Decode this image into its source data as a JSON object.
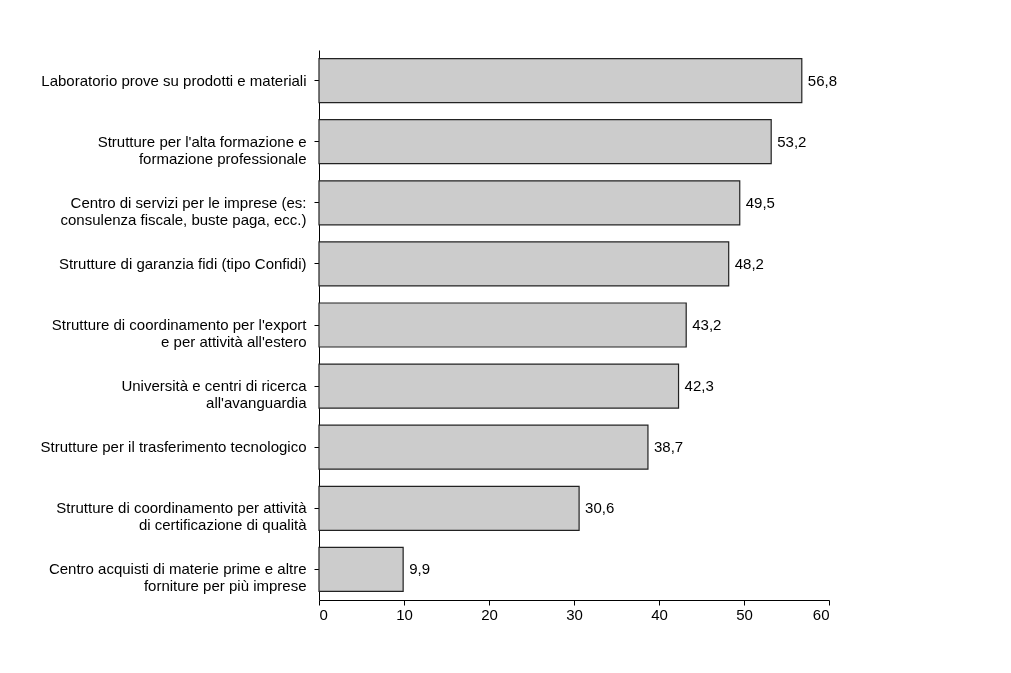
{
  "chart_data": {
    "type": "bar",
    "orientation": "horizontal",
    "categories": [
      "Laboratorio prove su prodotti e materiali",
      "Strutture per l'alta formazione e\nformazione professionale",
      "Centro di servizi per le imprese (es:\nconsulenza fiscale, buste paga, ecc.)",
      "Strutture di garanzia fidi (tipo Confidi)",
      "Strutture di coordinamento per l'export\ne per attività all'estero",
      "Università e centri di ricerca\nall'avanguardia",
      "Strutture per il trasferimento tecnologico",
      "Strutture di coordinamento per attività\ndi certificazione di qualità",
      "Centro acquisti di materie prime e altre\nforniture per più imprese"
    ],
    "values": [
      56.8,
      53.2,
      49.5,
      48.2,
      43.2,
      42.3,
      38.7,
      30.6,
      9.9
    ],
    "value_labels": [
      "56,8",
      "53,2",
      "49,5",
      "48,2",
      "43,2",
      "42,3",
      "38,7",
      "30,6",
      "9,9"
    ],
    "color": "#cccccc",
    "xlim": [
      0,
      60
    ],
    "xticks": [
      0,
      10,
      20,
      30,
      40,
      50,
      60
    ],
    "grid": false
  }
}
